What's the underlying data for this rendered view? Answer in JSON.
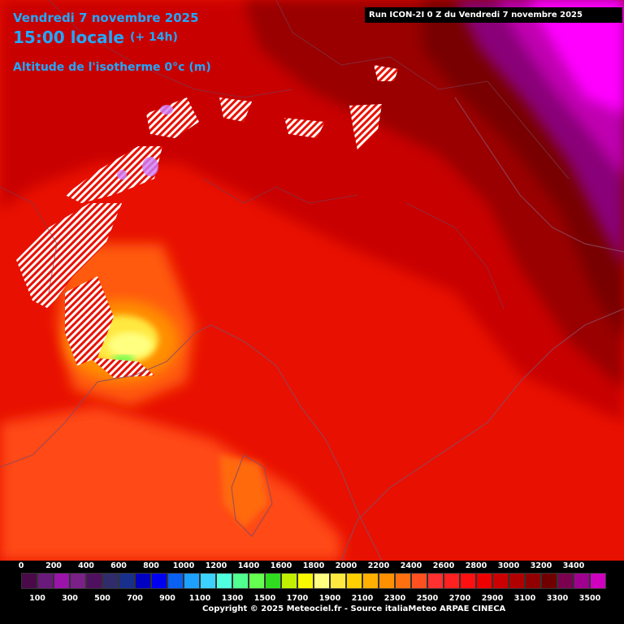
{
  "header": {
    "date": "Vendredi 7 novembre 2025",
    "time": "15:00 locale",
    "offset": "(+ 14h)",
    "parameter": "Altitude de l'isotherme 0°c (m)"
  },
  "run_info": "Run ICON-2I 0 Z du Vendredi 7 novembre 2025",
  "copyright": "Copyright © 2025 Meteociel.fr - Source italiaMeteo ARPAE CINECA",
  "colors": {
    "text_accent": "#20a8ff",
    "dominant_red": "#e81000",
    "dark_red": "#9a0000",
    "magenta": "#ff00ff"
  },
  "legend": {
    "upper_labels": [
      "0",
      "200",
      "400",
      "600",
      "800",
      "1000",
      "1200",
      "1400",
      "1600",
      "1800",
      "2000",
      "2200",
      "2400",
      "2600",
      "2800",
      "3000",
      "3200",
      "3400"
    ],
    "lower_labels": [
      "100",
      "300",
      "500",
      "700",
      "900",
      "1100",
      "1300",
      "1500",
      "1700",
      "1900",
      "2100",
      "2300",
      "2500",
      "2700",
      "2900",
      "3100",
      "3300",
      "3500"
    ],
    "colors": [
      "#4a0a4a",
      "#6a1a7a",
      "#9a14aa",
      "#7a2088",
      "#501060",
      "#302c6c",
      "#18308c",
      "#0000c0",
      "#0000f0",
      "#0a60f0",
      "#1ea0ff",
      "#3cd0ff",
      "#50ffe0",
      "#50ff90",
      "#64ff50",
      "#30dc20",
      "#c0f000",
      "#f8f800",
      "#ffff80",
      "#ffe840",
      "#ffd000",
      "#ffb000",
      "#ff9000",
      "#ff7010",
      "#ff5020",
      "#ff3030",
      "#ff2020",
      "#ff1010",
      "#ee0000",
      "#cc0000",
      "#b00000",
      "#900000",
      "#700000",
      "#7a0050",
      "#a00090",
      "#d000c0",
      "#ff00ff",
      "#ff50ff",
      "#ff80ff"
    ]
  }
}
